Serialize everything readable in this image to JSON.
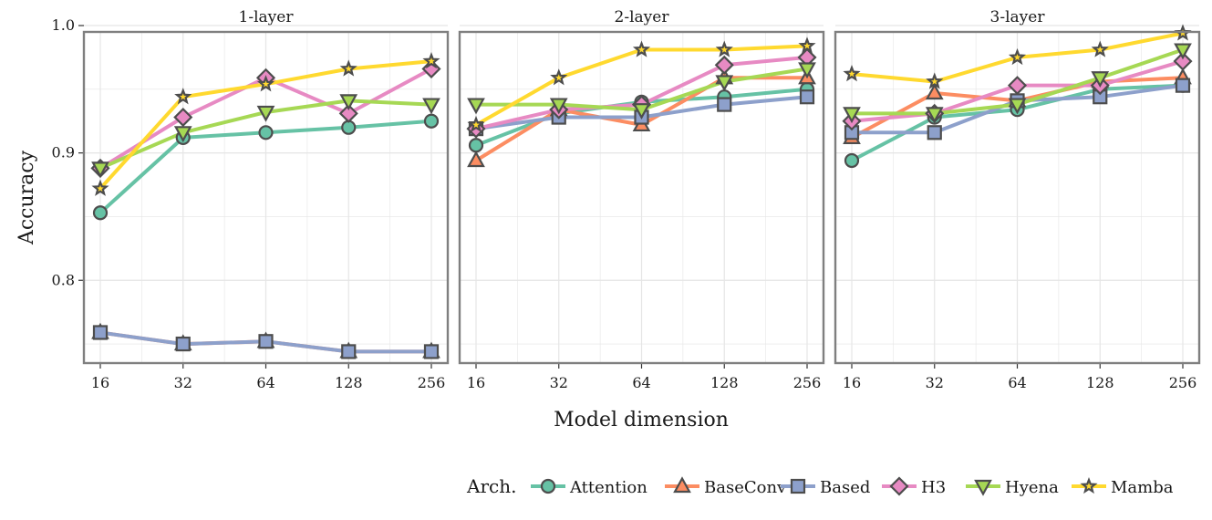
{
  "chart_data": {
    "type": "line",
    "facet_by": "Layers",
    "ylabel": "Accuracy",
    "xlabel": "Model dimension",
    "x": [
      "16",
      "32",
      "64",
      "128",
      "256"
    ],
    "ylim": [
      0.735,
      0.995
    ],
    "yticks": [
      0.8,
      0.9,
      1.0
    ],
    "ytick_labels": [
      "0.8",
      "0.9",
      "1.0"
    ],
    "legend_title": "Arch.",
    "legend_position": "bottom",
    "grid": true,
    "panels": [
      {
        "title": "1-layer",
        "series": [
          {
            "name": "Attention",
            "values": [
              0.853,
              0.912,
              0.916,
              0.92,
              0.925
            ]
          },
          {
            "name": "BaseConv",
            "values": [
              0.759,
              0.75,
              0.752,
              0.744,
              0.744
            ]
          },
          {
            "name": "Based",
            "values": [
              0.759,
              0.75,
              0.752,
              0.744,
              0.744
            ]
          },
          {
            "name": "H3",
            "values": [
              0.888,
              0.928,
              0.959,
              0.931,
              0.966
            ]
          },
          {
            "name": "Hyena",
            "values": [
              0.888,
              0.916,
              0.932,
              0.941,
              0.938
            ]
          },
          {
            "name": "Mamba",
            "values": [
              0.872,
              0.944,
              0.954,
              0.966,
              0.972
            ]
          }
        ]
      },
      {
        "title": "2-layer",
        "series": [
          {
            "name": "Attention",
            "values": [
              0.906,
              0.931,
              0.94,
              0.944,
              0.95
            ]
          },
          {
            "name": "BaseConv",
            "values": [
              0.894,
              0.934,
              0.922,
              0.959,
              0.959
            ]
          },
          {
            "name": "Based",
            "values": [
              0.919,
              0.928,
              0.928,
              0.938,
              0.944
            ]
          },
          {
            "name": "H3",
            "values": [
              0.919,
              0.934,
              0.938,
              0.969,
              0.975
            ]
          },
          {
            "name": "Hyena",
            "values": [
              0.938,
              0.938,
              0.934,
              0.956,
              0.966
            ]
          },
          {
            "name": "Mamba",
            "values": [
              0.922,
              0.959,
              0.981,
              0.981,
              0.984
            ]
          }
        ]
      },
      {
        "title": "3-layer",
        "series": [
          {
            "name": "Attention",
            "values": [
              0.894,
              0.928,
              0.934,
              0.95,
              0.953
            ]
          },
          {
            "name": "BaseConv",
            "values": [
              0.912,
              0.947,
              0.941,
              0.956,
              0.959
            ]
          },
          {
            "name": "Based",
            "values": [
              0.916,
              0.916,
              0.941,
              0.944,
              0.953
            ]
          },
          {
            "name": "H3",
            "values": [
              0.925,
              0.931,
              0.953,
              0.953,
              0.972
            ]
          },
          {
            "name": "Hyena",
            "values": [
              0.931,
              0.931,
              0.938,
              0.959,
              0.981
            ]
          },
          {
            "name": "Mamba",
            "values": [
              0.962,
              0.956,
              0.975,
              0.981,
              0.994
            ]
          }
        ]
      }
    ]
  },
  "series_styles": [
    {
      "name": "Attention",
      "color": "#66c2a5",
      "marker": "circle-icon"
    },
    {
      "name": "BaseConv",
      "color": "#fc8d62",
      "marker": "triangle-up-icon"
    },
    {
      "name": "Based",
      "color": "#8da0cb",
      "marker": "square-icon"
    },
    {
      "name": "H3",
      "color": "#e78ac3",
      "marker": "diamond-icon"
    },
    {
      "name": "Hyena",
      "color": "#a6d854",
      "marker": "triangle-down-icon"
    },
    {
      "name": "Mamba",
      "color": "#ffd92f",
      "marker": "star-icon"
    }
  ],
  "colors": {
    "outline": "#4d4d4d",
    "panel_border": "#7f7f7f",
    "grid": "#e5e5e5"
  }
}
